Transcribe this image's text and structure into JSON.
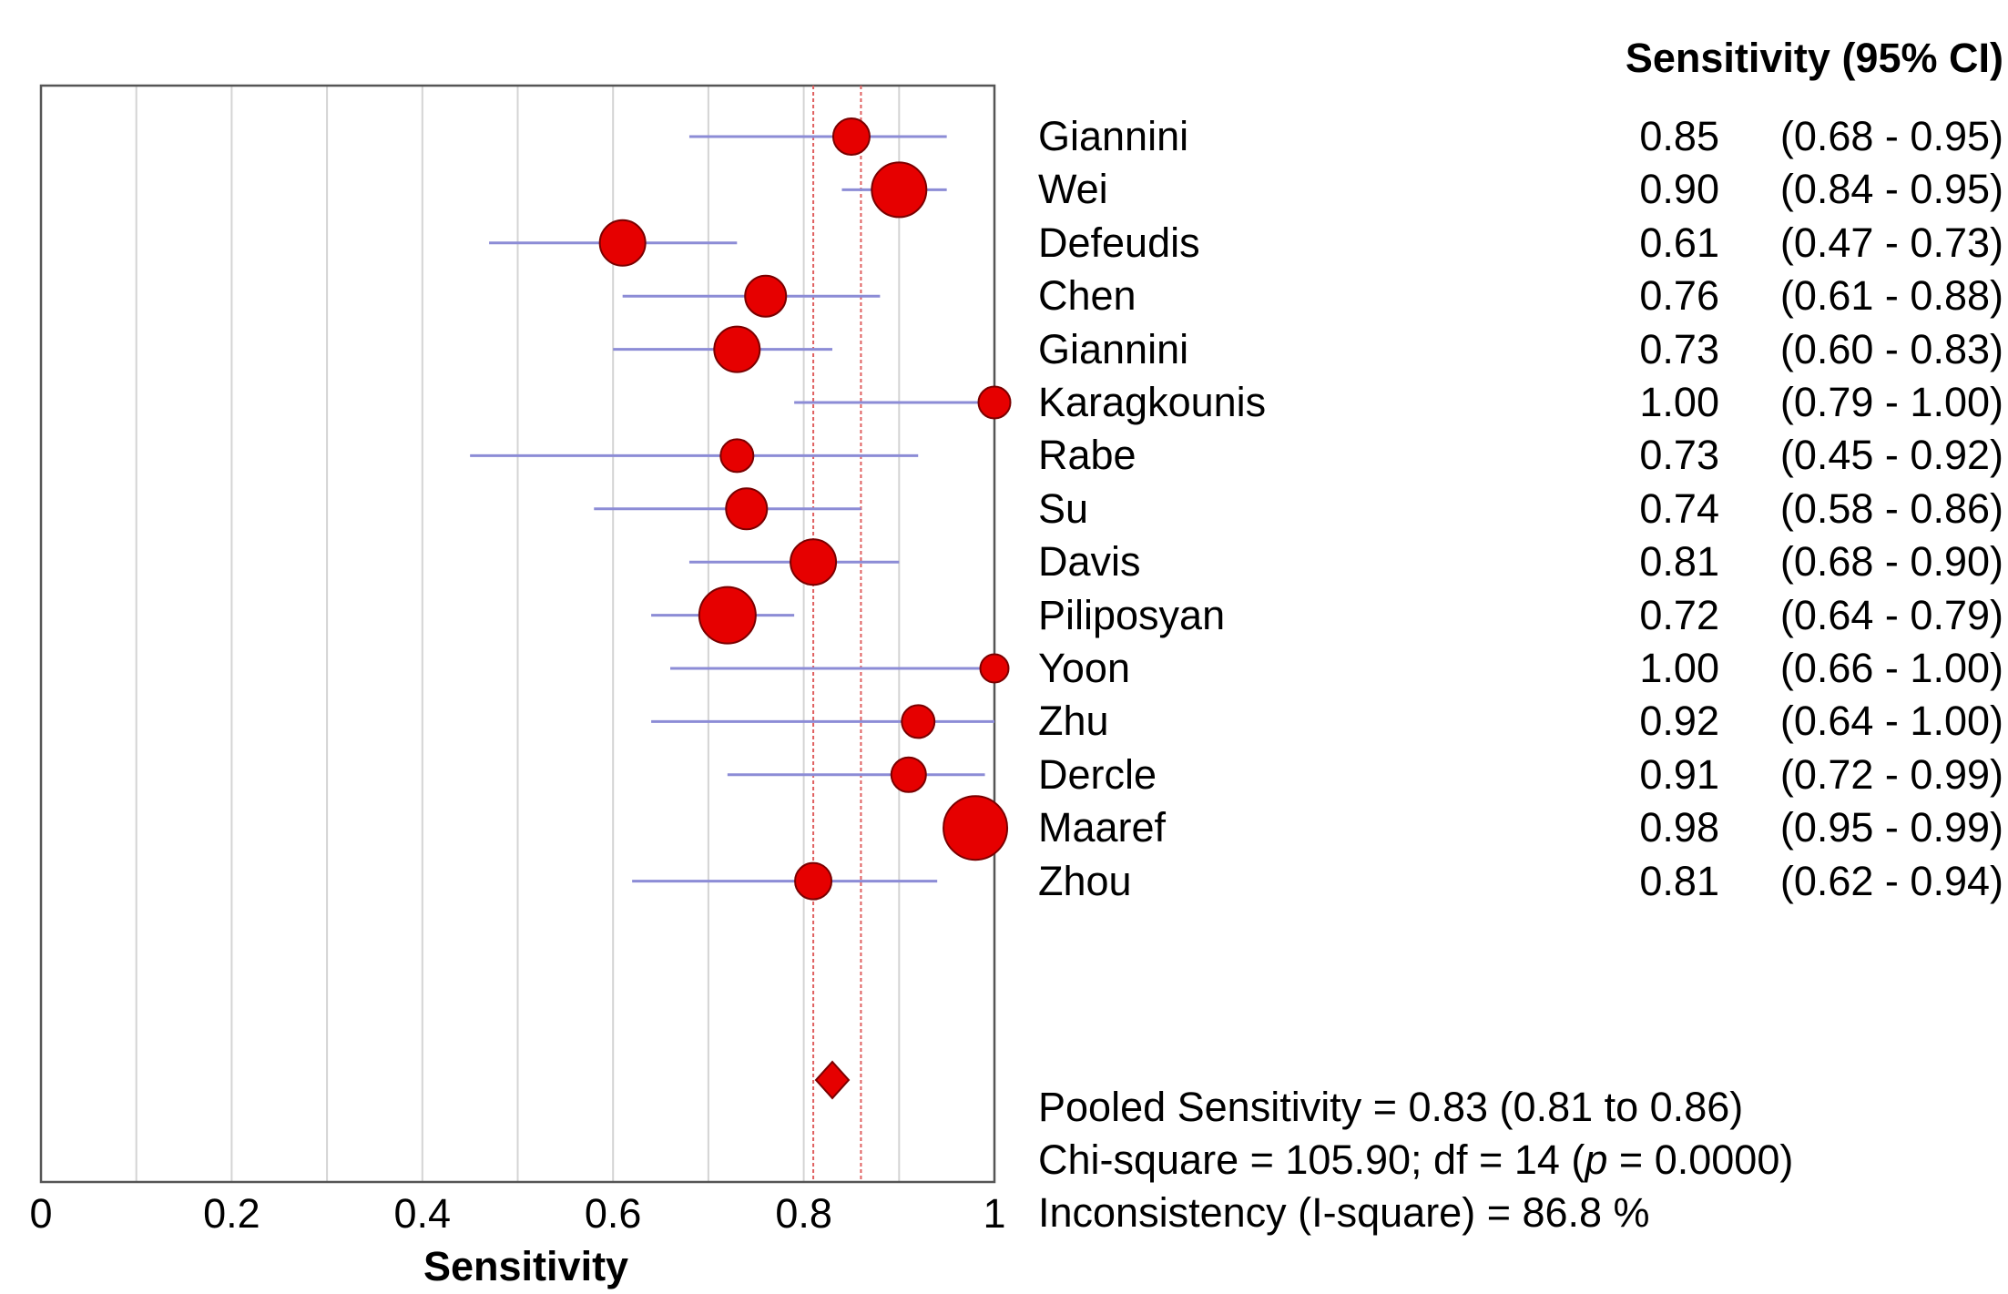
{
  "colors": {
    "point": "#e60000",
    "point_stroke": "#7a0000",
    "ci_line": "#8c8cd6",
    "ref_line": "#e06060",
    "grid": "#d4d4d4",
    "frame": "#555555"
  },
  "header": {
    "sensitivity_ci": "Sensitivity (95% CI)"
  },
  "chart_data": {
    "type": "forest",
    "xlabel": "Sensitivity",
    "xlim": [
      0,
      1
    ],
    "xticks": [
      0,
      0.2,
      0.4,
      0.6,
      0.8,
      1
    ],
    "xtick_labels": [
      "0",
      "0.2",
      "0.4",
      "0.6",
      "0.8",
      "1"
    ],
    "grid": "vertical, every 0.1",
    "studies": [
      {
        "name": "Giannini",
        "sens": 0.85,
        "lo": 0.68,
        "hi": 0.95,
        "sens_label": "0.85",
        "ci_label": "(0.68 - 0.95)",
        "weight": 2
      },
      {
        "name": "Wei",
        "sens": 0.9,
        "lo": 0.84,
        "hi": 0.95,
        "sens_label": "0.90",
        "ci_label": "(0.84 - 0.95)",
        "weight": 4
      },
      {
        "name": "Defeudis",
        "sens": 0.61,
        "lo": 0.47,
        "hi": 0.73,
        "sens_label": "0.61",
        "ci_label": "(0.47 - 0.73)",
        "weight": 3
      },
      {
        "name": "Chen",
        "sens": 0.76,
        "lo": 0.61,
        "hi": 0.88,
        "sens_label": "0.76",
        "ci_label": "(0.61 - 0.88)",
        "weight": 2.5
      },
      {
        "name": "Giannini",
        "sens": 0.73,
        "lo": 0.6,
        "hi": 0.83,
        "sens_label": "0.73",
        "ci_label": "(0.60 - 0.83)",
        "weight": 3
      },
      {
        "name": "Karagkounis",
        "sens": 1.0,
        "lo": 0.79,
        "hi": 1.0,
        "sens_label": "1.00",
        "ci_label": "(0.79 - 1.00)",
        "weight": 1.5
      },
      {
        "name": "Rabe",
        "sens": 0.73,
        "lo": 0.45,
        "hi": 0.92,
        "sens_label": "0.73",
        "ci_label": "(0.45 - 0.92)",
        "weight": 1.6
      },
      {
        "name": "Su",
        "sens": 0.74,
        "lo": 0.58,
        "hi": 0.86,
        "sens_label": "0.74",
        "ci_label": "(0.58 - 0.86)",
        "weight": 2.5
      },
      {
        "name": "Davis",
        "sens": 0.81,
        "lo": 0.68,
        "hi": 0.9,
        "sens_label": "0.81",
        "ci_label": "(0.68 - 0.90)",
        "weight": 3
      },
      {
        "name": "Piliposyan",
        "sens": 0.72,
        "lo": 0.64,
        "hi": 0.79,
        "sens_label": "0.72",
        "ci_label": "(0.64 - 0.79)",
        "weight": 4.2
      },
      {
        "name": "Yoon",
        "sens": 1.0,
        "lo": 0.66,
        "hi": 1.0,
        "sens_label": "1.00",
        "ci_label": "(0.66 - 1.00)",
        "weight": 1.1
      },
      {
        "name": "Zhu",
        "sens": 0.92,
        "lo": 0.64,
        "hi": 1.0,
        "sens_label": "0.92",
        "ci_label": "(0.64 - 1.00)",
        "weight": 1.6
      },
      {
        "name": "Dercle",
        "sens": 0.91,
        "lo": 0.72,
        "hi": 0.99,
        "sens_label": "0.91",
        "ci_label": "(0.72 - 0.99)",
        "weight": 1.8
      },
      {
        "name": "Maaref",
        "sens": 0.98,
        "lo": 0.95,
        "hi": 0.99,
        "sens_label": "0.98",
        "ci_label": "(0.95 - 0.99)",
        "weight": 5
      },
      {
        "name": "Zhou",
        "sens": 0.81,
        "lo": 0.62,
        "hi": 0.94,
        "sens_label": "0.81",
        "ci_label": "(0.62 - 0.94)",
        "weight": 2
      }
    ],
    "pooled": {
      "sens": 0.83,
      "lo": 0.81,
      "hi": 0.86
    }
  },
  "stats": {
    "pooled": "Pooled Sensitivity = 0.83 (0.81 to 0.86)",
    "chi_pre": "Chi-square = 105.90; df =  14 (",
    "chi_p": "p",
    "chi_post": " = 0.0000)",
    "inconsistency": "Inconsistency (I-square) = 86.8 %"
  }
}
